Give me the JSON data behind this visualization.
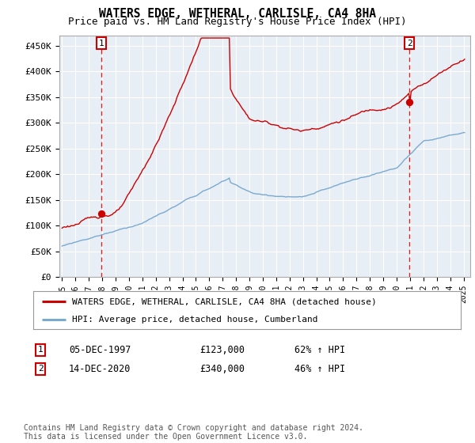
{
  "title": "WATERS EDGE, WETHERAL, CARLISLE, CA4 8HA",
  "subtitle": "Price paid vs. HM Land Registry's House Price Index (HPI)",
  "ylabel_ticks": [
    "£0",
    "£50K",
    "£100K",
    "£150K",
    "£200K",
    "£250K",
    "£300K",
    "£350K",
    "£400K",
    "£450K"
  ],
  "ytick_values": [
    0,
    50000,
    100000,
    150000,
    200000,
    250000,
    300000,
    350000,
    400000,
    450000
  ],
  "ylim": [
    0,
    470000
  ],
  "xlim_start": 1994.8,
  "xlim_end": 2025.5,
  "red_line_color": "#cc0000",
  "blue_line_color": "#7aaad0",
  "plot_bg_color": "#e8eef5",
  "grid_color": "#ffffff",
  "marker_color": "#cc0000",
  "point1_x": 1997.92,
  "point1_y": 123000,
  "point2_x": 2020.96,
  "point2_y": 340000,
  "legend_red_label": "WATERS EDGE, WETHERAL, CARLISLE, CA4 8HA (detached house)",
  "legend_blue_label": "HPI: Average price, detached house, Cumberland",
  "table_row1": [
    "1",
    "05-DEC-1997",
    "£123,000",
    "62% ↑ HPI"
  ],
  "table_row2": [
    "2",
    "14-DEC-2020",
    "£340,000",
    "46% ↑ HPI"
  ],
  "footer": "Contains HM Land Registry data © Crown copyright and database right 2024.\nThis data is licensed under the Open Government Licence v3.0.",
  "background_color": "#ffffff",
  "title_fontsize": 10.5,
  "subtitle_fontsize": 9
}
